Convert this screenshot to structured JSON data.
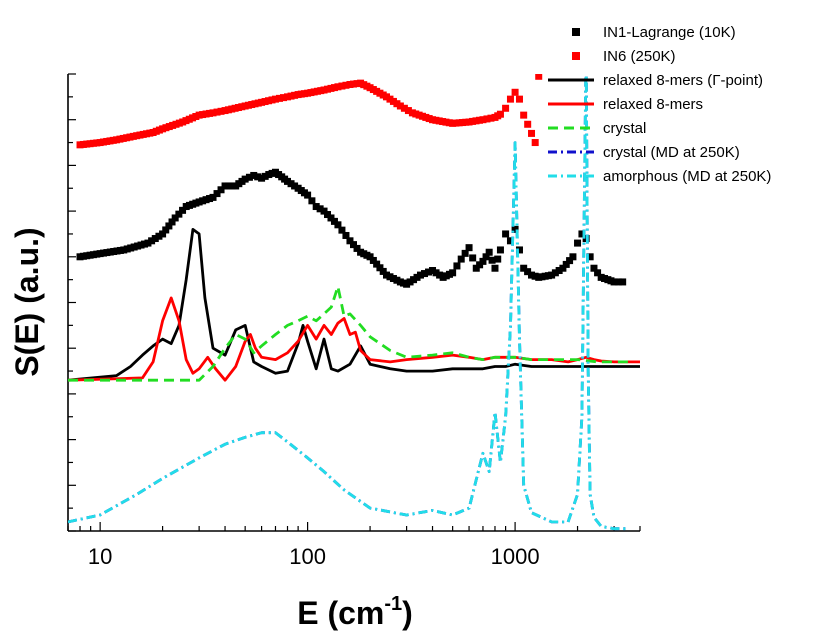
{
  "chart_data": {
    "type": "line",
    "title": "",
    "xlabel": "E (cm⁻¹)",
    "ylabel": "S(E) (a.u.)",
    "x_scale": "log",
    "xlim": [
      7,
      4000
    ],
    "ylim": [
      0,
      10
    ],
    "x_ticks": [
      10,
      100,
      1000
    ],
    "x_tick_labels": [
      "10",
      "100",
      "1000"
    ],
    "legend_position": "top-right",
    "grid": false,
    "series": [
      {
        "name": "IN1-Lagrange (10K)",
        "style": "markers",
        "marker": "square",
        "color": "#000000",
        "x": [
          8,
          10,
          13,
          17,
          20,
          23,
          26,
          30,
          35,
          40,
          45,
          50,
          55,
          60,
          65,
          70,
          75,
          80,
          90,
          100,
          110,
          120,
          140,
          160,
          180,
          200,
          240,
          280,
          300,
          350,
          400,
          450,
          500,
          550,
          600,
          650,
          700,
          750,
          800,
          850,
          900,
          950,
          1000,
          1050,
          1100,
          1200,
          1300,
          1500,
          1700,
          1900,
          2000,
          2100,
          2200,
          2300,
          2400,
          2600,
          2800,
          3000,
          3300
        ],
        "y": [
          6.0,
          6.07,
          6.15,
          6.3,
          6.5,
          6.85,
          7.1,
          7.2,
          7.3,
          7.55,
          7.55,
          7.7,
          7.78,
          7.72,
          7.8,
          7.85,
          7.75,
          7.65,
          7.5,
          7.35,
          7.1,
          7.0,
          6.7,
          6.35,
          6.1,
          6.0,
          5.6,
          5.45,
          5.4,
          5.6,
          5.7,
          5.55,
          5.65,
          5.95,
          6.2,
          5.75,
          5.9,
          6.1,
          5.75,
          6.15,
          6.5,
          6.35,
          6.6,
          6.15,
          5.75,
          5.6,
          5.55,
          5.6,
          5.75,
          6.0,
          6.3,
          6.5,
          6.4,
          6.0,
          5.75,
          5.55,
          5.5,
          5.45,
          5.45
        ]
      },
      {
        "name": "IN6 (250K)",
        "style": "markers",
        "marker": "square",
        "color": "#ff0000",
        "x": [
          8,
          10,
          12,
          15,
          18,
          20,
          25,
          30,
          35,
          40,
          50,
          60,
          70,
          80,
          90,
          100,
          120,
          140,
          160,
          180,
          200,
          240,
          280,
          320,
          400,
          500,
          600,
          700,
          800,
          850,
          900,
          950,
          1000,
          1050,
          1100,
          1150,
          1200,
          1250,
          1300
        ],
        "y": [
          8.45,
          8.5,
          8.56,
          8.65,
          8.72,
          8.8,
          8.95,
          9.1,
          9.15,
          9.2,
          9.3,
          9.38,
          9.45,
          9.5,
          9.55,
          9.58,
          9.65,
          9.72,
          9.77,
          9.8,
          9.7,
          9.5,
          9.3,
          9.15,
          9.0,
          8.92,
          8.95,
          9.0,
          9.05,
          9.12,
          9.25,
          9.45,
          9.6,
          9.45,
          9.1,
          8.9,
          8.7,
          8.5,
          9.95
        ]
      },
      {
        "name": "relaxed 8-mers (Γ-point)",
        "style": "solid",
        "color": "#000000",
        "x": [
          7,
          12,
          14,
          16,
          18,
          20,
          22,
          24,
          26,
          28,
          30,
          32,
          35,
          40,
          45,
          50,
          55,
          60,
          70,
          80,
          90,
          95,
          100,
          110,
          120,
          130,
          140,
          160,
          180,
          200,
          250,
          300,
          400,
          500,
          600,
          700,
          800,
          900,
          1000,
          1200,
          1500,
          1800,
          2000,
          2100,
          2150,
          2200,
          2300,
          2400,
          2600,
          3000,
          3500,
          4000
        ],
        "y": [
          3.3,
          3.4,
          3.6,
          3.85,
          4.05,
          4.2,
          4.1,
          4.5,
          5.5,
          6.6,
          6.5,
          5.1,
          4.0,
          3.85,
          4.4,
          4.5,
          3.7,
          3.6,
          3.45,
          3.5,
          4.1,
          4.5,
          4.15,
          3.55,
          4.2,
          3.55,
          3.5,
          3.65,
          4.05,
          3.65,
          3.55,
          3.5,
          3.5,
          3.55,
          3.55,
          3.55,
          3.6,
          3.6,
          3.65,
          3.6,
          3.6,
          3.6,
          3.6,
          3.6,
          3.6,
          3.6,
          3.6,
          3.6,
          3.6,
          3.6,
          3.6,
          3.6
        ]
      },
      {
        "name": "relaxed 8-mers",
        "style": "solid",
        "color": "#ff0000",
        "x": [
          7,
          16,
          18,
          20,
          22,
          24,
          26,
          28,
          30,
          33,
          36,
          40,
          45,
          50,
          53,
          56,
          60,
          70,
          80,
          90,
          100,
          110,
          120,
          130,
          140,
          150,
          160,
          170,
          180,
          200,
          250,
          300,
          400,
          500,
          600,
          700,
          800,
          900,
          1000,
          1200,
          1500,
          1800,
          2000,
          2200,
          2400,
          2600,
          3000,
          3500,
          4000
        ],
        "y": [
          3.3,
          3.35,
          3.7,
          4.6,
          5.1,
          4.6,
          3.75,
          3.45,
          3.55,
          3.8,
          3.55,
          3.3,
          3.6,
          4.15,
          4.3,
          4.0,
          3.8,
          3.75,
          3.9,
          4.15,
          4.5,
          4.2,
          4.5,
          4.3,
          4.55,
          4.65,
          4.3,
          4.35,
          3.95,
          3.75,
          3.7,
          3.75,
          3.8,
          3.85,
          3.8,
          3.75,
          3.8,
          3.8,
          3.8,
          3.75,
          3.75,
          3.7,
          3.75,
          3.8,
          3.75,
          3.72,
          3.7,
          3.7,
          3.7
        ]
      },
      {
        "name": "crystal",
        "style": "dashed",
        "color": "#22dd22",
        "x": [
          7,
          30,
          35,
          40,
          45,
          50,
          55,
          60,
          70,
          80,
          90,
          100,
          110,
          120,
          130,
          140,
          150,
          160,
          180,
          200,
          250,
          300,
          400,
          500,
          600,
          700,
          800,
          900,
          1000,
          1200,
          1500,
          2000,
          2500,
          3000,
          3500
        ],
        "y": [
          3.3,
          3.3,
          3.6,
          4.0,
          4.3,
          4.2,
          3.9,
          4.05,
          4.3,
          4.5,
          4.6,
          4.7,
          4.6,
          4.75,
          4.9,
          5.35,
          4.7,
          4.75,
          4.5,
          4.25,
          3.95,
          3.8,
          3.85,
          3.9,
          3.8,
          3.75,
          3.8,
          3.8,
          3.8,
          3.75,
          3.75,
          3.75,
          3.7,
          3.7,
          3.7
        ]
      },
      {
        "name": "crystal (MD at 250K)",
        "style": "dash-dot",
        "color": "#1010cc",
        "x": [
          7,
          10,
          15,
          20,
          30,
          40,
          50,
          60,
          70,
          80,
          100,
          120,
          150,
          200,
          300,
          400,
          500,
          600,
          700,
          750,
          800,
          850,
          900,
          950,
          1000,
          1050,
          1100,
          1200,
          1500,
          1800,
          2000,
          2100,
          2200,
          2250,
          2300,
          2400,
          2600,
          3000,
          3500
        ],
        "y": [
          0.2,
          0.35,
          0.8,
          1.15,
          1.6,
          1.9,
          2.05,
          2.15,
          2.15,
          1.95,
          1.6,
          1.3,
          0.9,
          0.5,
          0.35,
          0.45,
          0.35,
          0.5,
          1.7,
          1.3,
          2.6,
          1.5,
          2.5,
          4.5,
          8.5,
          4.2,
          1.0,
          0.4,
          0.2,
          0.2,
          0.8,
          2.5,
          10.6,
          3.5,
          0.8,
          0.3,
          0.1,
          0.05,
          0.05
        ]
      },
      {
        "name": "amorphous (MD at 250K)",
        "style": "dash-dot",
        "color": "#22dde8",
        "x": [
          7,
          10,
          15,
          20,
          30,
          40,
          50,
          60,
          70,
          80,
          100,
          120,
          150,
          200,
          300,
          400,
          500,
          600,
          700,
          750,
          800,
          850,
          900,
          950,
          1000,
          1050,
          1100,
          1200,
          1500,
          1800,
          2000,
          2100,
          2200,
          2250,
          2300,
          2400,
          2600,
          3000,
          3500
        ],
        "y": [
          0.2,
          0.35,
          0.8,
          1.15,
          1.6,
          1.9,
          2.05,
          2.15,
          2.15,
          1.95,
          1.6,
          1.3,
          0.9,
          0.5,
          0.35,
          0.45,
          0.35,
          0.5,
          1.7,
          1.3,
          2.6,
          1.5,
          2.5,
          4.5,
          8.5,
          4.2,
          1.0,
          0.4,
          0.2,
          0.2,
          0.8,
          2.5,
          10.6,
          3.5,
          0.8,
          0.3,
          0.1,
          0.05,
          0.05
        ]
      }
    ]
  }
}
